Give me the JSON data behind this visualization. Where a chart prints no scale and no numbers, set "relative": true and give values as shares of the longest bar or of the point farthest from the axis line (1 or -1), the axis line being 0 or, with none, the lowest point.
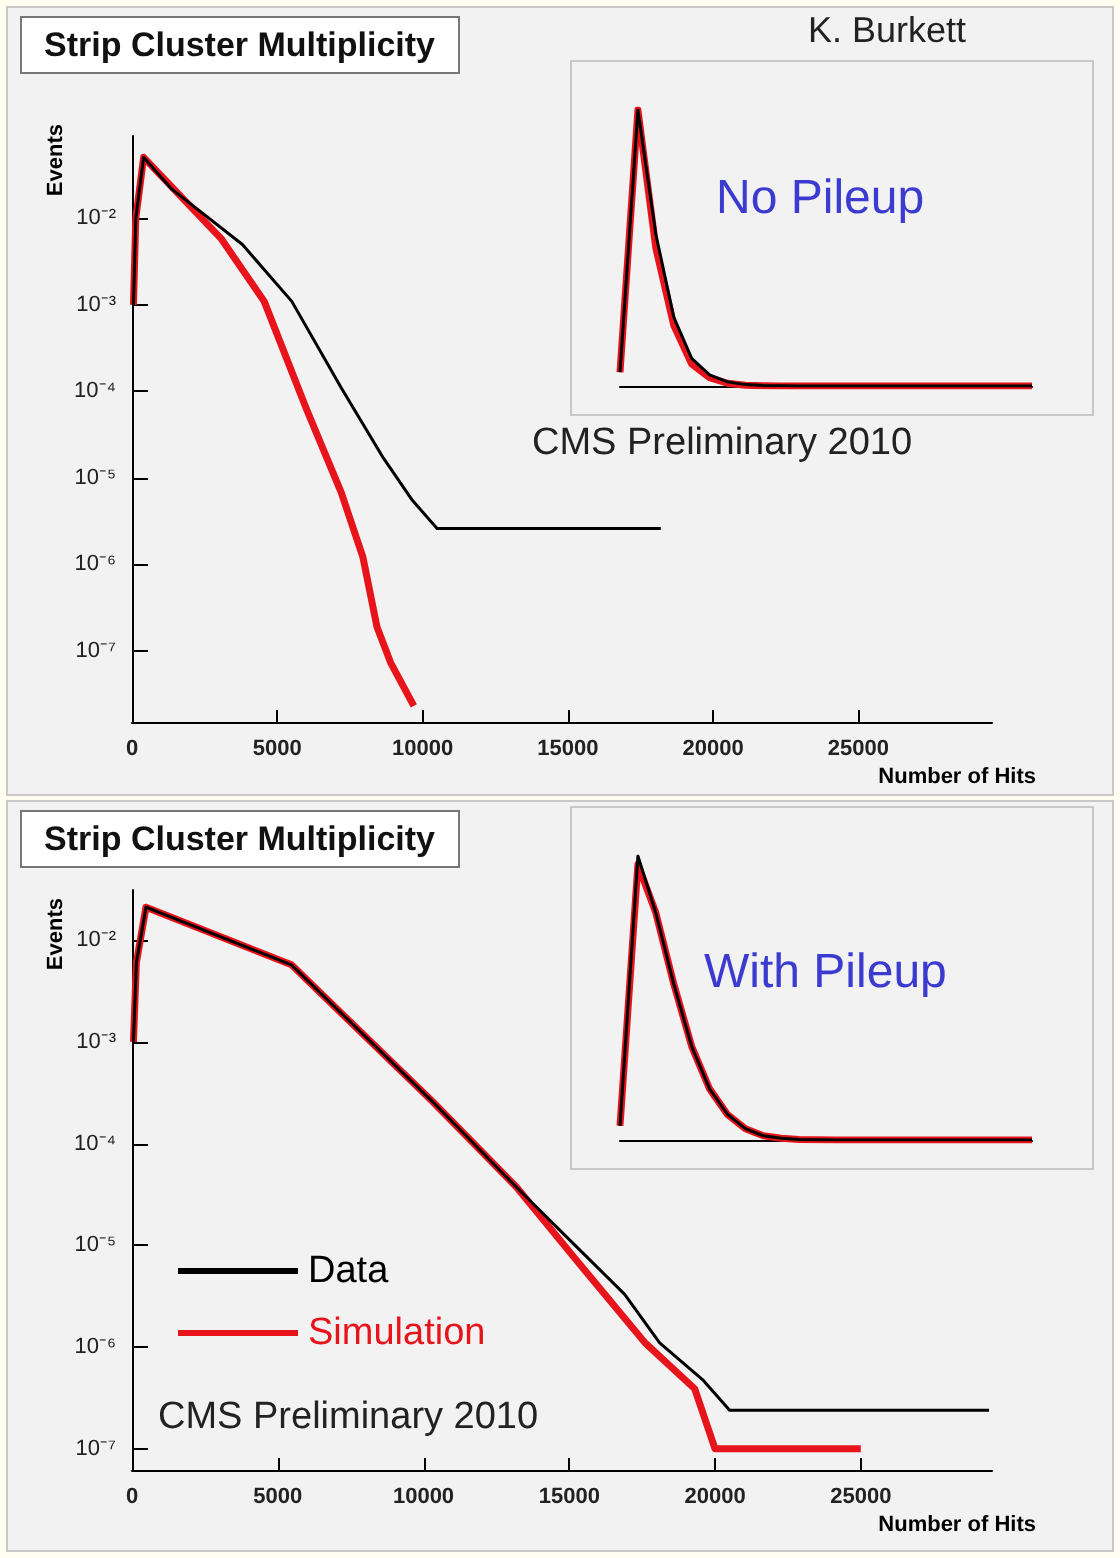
{
  "chart_data": [
    {
      "type": "line",
      "title": "Strip Cluster Multiplicity",
      "xlabel": "Number of Hits",
      "ylabel": "Events",
      "log": "y",
      "legend": false,
      "grid": false,
      "marker": "none",
      "xlim": [
        0,
        29600
      ],
      "xticks": [
        0,
        5000,
        10000,
        15000,
        20000,
        25000
      ],
      "ylim": [
        1.5e-08,
        0.09
      ],
      "yticks": [
        {
          "value": 1e-07,
          "label": "10⁻⁷"
        },
        {
          "value": 1e-06,
          "label": "10⁻⁶"
        },
        {
          "value": 1e-05,
          "label": "10⁻⁵"
        },
        {
          "value": 0.0001,
          "label": "10⁻⁴"
        },
        {
          "value": 0.001,
          "label": "10⁻³"
        },
        {
          "value": 0.01,
          "label": "10⁻²"
        }
      ],
      "annotations": [
        "K. Burkett",
        "CMS Preliminary 2010"
      ],
      "series": [
        {
          "color": "#000000",
          "x": [
            50,
            130,
            400,
            1360,
            3800,
            5500,
            7200,
            8650,
            9650,
            10500,
            11400,
            12300,
            13000,
            14200,
            15900,
            17100,
            17400,
            18200
          ],
          "values": [
            0.001,
            0.01,
            0.051,
            0.022,
            0.005,
            0.0011,
            0.00011,
            1.7e-05,
            5.5e-06,
            2.6e-06,
            2.6e-06,
            2.6e-06,
            2.6e-06,
            2.6e-06,
            2.6e-06,
            2.6e-06,
            2.6e-06,
            2.6e-06
          ]
        },
        {
          "color": "#e8141c",
          "x": [
            50,
            130,
            400,
            3060,
            4550,
            6000,
            7200,
            7950,
            8430,
            8900,
            9700
          ],
          "values": [
            0.001,
            0.01,
            0.051,
            0.0059,
            0.0011,
            6.3e-05,
            6.8e-06,
            1.2e-06,
            1.9e-07,
            7.3e-08,
            2.3e-08
          ]
        }
      ]
    },
    {
      "type": "line",
      "relative": true,
      "legend": false,
      "grid": false,
      "marker": "none",
      "annotations": [
        "No Pileup"
      ],
      "categories": [
        null,
        null,
        null,
        null,
        null,
        null,
        null,
        null,
        null,
        null,
        null,
        null,
        null,
        null,
        null,
        null,
        null,
        null,
        null,
        null,
        null,
        null,
        null,
        null
      ],
      "series": [
        {
          "color": "#000000",
          "values": [
            0.05,
            1,
            0.55,
            0.25,
            0.1,
            0.04,
            0.015,
            0.005,
            0.002,
            0.001,
            0,
            0,
            0,
            0,
            0,
            0,
            0,
            0,
            0,
            0,
            0,
            0,
            0,
            0
          ]
        },
        {
          "color": "#e8141c",
          "values": [
            0.05,
            1,
            0.5,
            0.22,
            0.08,
            0.03,
            0.01,
            0.003,
            0.001,
            0,
            0,
            0,
            0,
            0,
            0,
            0,
            0,
            0,
            0,
            0,
            0,
            0,
            0,
            0
          ]
        }
      ]
    },
    {
      "type": "line",
      "title": "Strip Cluster Multiplicity",
      "xlabel": "Number of Hits",
      "ylabel": "Events",
      "log": "y",
      "legend": "bottom left",
      "grid": false,
      "marker": "none",
      "xlim": [
        0,
        29500
      ],
      "xticks": [
        0,
        5000,
        10000,
        15000,
        20000,
        25000
      ],
      "ylim": [
        6.2e-08,
        0.031
      ],
      "yticks": [
        {
          "value": 1e-07,
          "label": "10⁻⁷"
        },
        {
          "value": 1e-06,
          "label": "10⁻⁶"
        },
        {
          "value": 1e-05,
          "label": "10⁻⁵"
        },
        {
          "value": 0.0001,
          "label": "10⁻⁴"
        },
        {
          "value": 0.001,
          "label": "10⁻³"
        },
        {
          "value": 0.01,
          "label": "10⁻²"
        }
      ],
      "annotations": [
        "CMS Preliminary 2010"
      ],
      "series": [
        {
          "name": "Data",
          "color": "#000000",
          "x": [
            50,
            150,
            480,
            5470,
            10300,
            13200,
            15200,
            16900,
            18100,
            19600,
            20500,
            22000,
            23900,
            25100,
            25900,
            26900,
            29400
          ],
          "values": [
            0.001,
            0.006,
            0.021,
            0.0057,
            0.00026,
            3.7e-05,
            1e-05,
            3.3e-06,
            1.1e-06,
            4.7e-07,
            2.4e-07,
            2.4e-07,
            2.4e-07,
            2.4e-07,
            2.4e-07,
            2.4e-07,
            2.4e-07
          ]
        },
        {
          "name": "Simulation",
          "color": "#e8141c",
          "x": [
            50,
            150,
            480,
            5470,
            10300,
            13200,
            15200,
            17600,
            19300,
            20000,
            22000,
            23000,
            25000
          ],
          "values": [
            0.001,
            0.006,
            0.021,
            0.0057,
            0.00026,
            3.7e-05,
            7.4e-06,
            1.1e-06,
            3.9e-07,
            1e-07,
            1e-07,
            1e-07,
            1e-07
          ]
        }
      ]
    },
    {
      "type": "line",
      "relative": true,
      "legend": false,
      "grid": false,
      "marker": "none",
      "annotations": [
        "With Pileup"
      ],
      "categories": [
        null,
        null,
        null,
        null,
        null,
        null,
        null,
        null,
        null,
        null,
        null,
        null,
        null,
        null,
        null,
        null,
        null,
        null,
        null,
        null,
        null,
        null,
        null,
        null
      ],
      "series": [
        {
          "color": "#000000",
          "values": [
            0.05,
            1,
            0.8,
            0.55,
            0.33,
            0.18,
            0.09,
            0.04,
            0.015,
            0.006,
            0.002,
            0.001,
            0,
            0,
            0,
            0,
            0,
            0,
            0,
            0,
            0,
            0,
            0,
            0
          ]
        },
        {
          "color": "#e8141c",
          "values": [
            0.05,
            0.97,
            0.8,
            0.55,
            0.33,
            0.18,
            0.09,
            0.04,
            0.015,
            0.006,
            0.002,
            0.001,
            0,
            0,
            0,
            0,
            0,
            0,
            0,
            0,
            0,
            0,
            0,
            0
          ]
        }
      ]
    }
  ]
}
